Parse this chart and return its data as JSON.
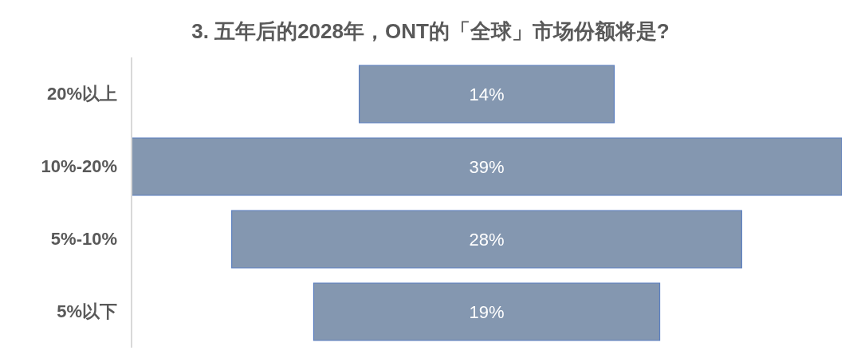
{
  "chart_data": {
    "type": "other",
    "title": "3. 五年后的2028年，ONT的「全球」市场份额将是?",
    "categories": [
      "20%以上",
      "10%-20%",
      "5%-10%",
      "5%以下"
    ],
    "values": [
      14,
      39,
      28,
      19
    ],
    "value_labels": [
      "14%",
      "39%",
      "28%",
      "19%"
    ],
    "color": "#8497b0",
    "legend": false
  }
}
